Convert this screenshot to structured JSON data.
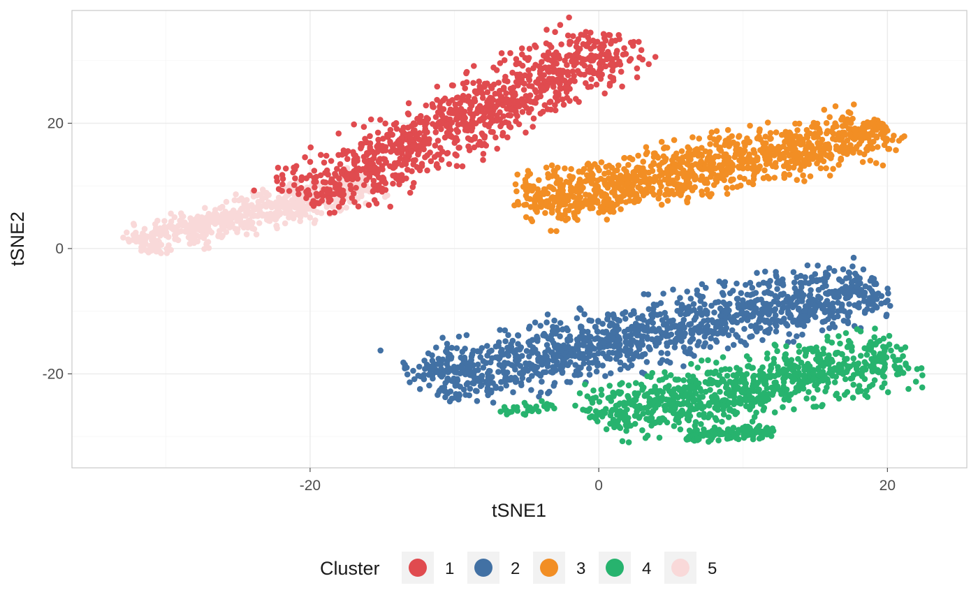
{
  "chart_data": {
    "type": "scatter",
    "title": "",
    "xlabel": "tSNE1",
    "ylabel": "tSNE2",
    "xlim": [
      -36.5,
      25.5
    ],
    "ylim": [
      -35,
      38
    ],
    "x_ticks": [
      -20,
      0,
      20
    ],
    "y_ticks": [
      -20,
      0,
      20
    ],
    "x_tick_labels": [
      "-20",
      "0",
      "20"
    ],
    "y_tick_labels": [
      "-20",
      "0",
      "20"
    ],
    "grid": true,
    "legend": {
      "title": "Cluster",
      "placement": "bottom"
    },
    "series": [
      {
        "name": "1",
        "color": "#E04B4F",
        "approx_points": 1000,
        "regions": [
          {
            "from": [
              -20,
              8
            ],
            "to": [
              1,
              33
            ],
            "spread_along": 1.6,
            "spread_across": 3.8,
            "weight": 1
          }
        ]
      },
      {
        "name": "2",
        "color": "#4271A4",
        "approx_points": 1300,
        "regions": [
          {
            "from": [
              -12,
              -21
            ],
            "to": [
              19,
              -6
            ],
            "spread_along": 1.0,
            "spread_across": 4.2,
            "weight": 1
          }
        ]
      },
      {
        "name": "3",
        "color": "#F28E24",
        "approx_points": 1100,
        "regions": [
          {
            "from": [
              -5,
              7
            ],
            "to": [
              20,
              19
            ],
            "spread_along": 1.0,
            "spread_across": 3.6,
            "weight": 1
          }
        ]
      },
      {
        "name": "4",
        "color": "#27B36E",
        "approx_points": 1000,
        "regions": [
          {
            "from": [
              0,
              -27
            ],
            "to": [
              21,
              -17
            ],
            "spread_along": 1.0,
            "spread_across": 3.8,
            "weight": 0.85
          },
          {
            "from": [
              -7,
              -26
            ],
            "to": [
              -3,
              -25
            ],
            "spread_along": 1.0,
            "spread_across": 0.8,
            "weight": 0.03
          },
          {
            "from": [
              6,
              -30
            ],
            "to": [
              12,
              -29
            ],
            "spread_along": 1.0,
            "spread_across": 1.2,
            "weight": 0.12
          }
        ]
      },
      {
        "name": "5",
        "color": "#F9D9D9",
        "approx_points": 600,
        "regions": [
          {
            "from": [
              -32,
              1
            ],
            "to": [
              -16,
              10
            ],
            "spread_along": 1.0,
            "spread_across": 2.4,
            "weight": 1
          }
        ]
      }
    ]
  }
}
